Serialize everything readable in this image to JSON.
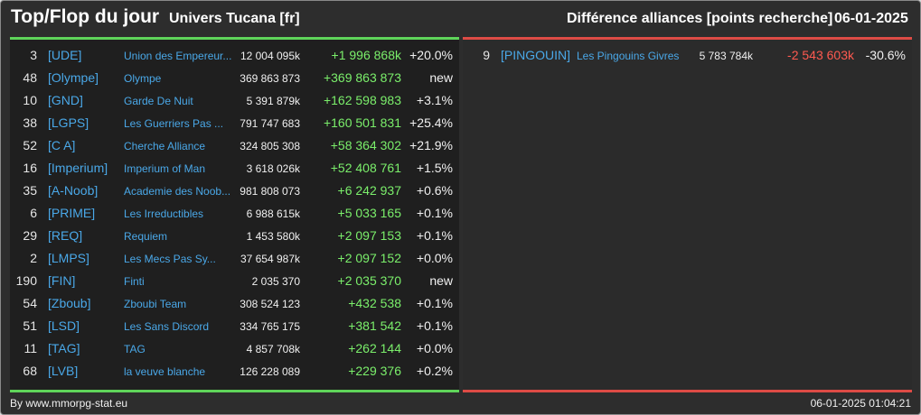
{
  "header": {
    "title": "Top/Flop du jour",
    "universe": "Univers Tucana [fr]",
    "category": "Différence alliances [points recherche]",
    "date": "06-01-2025"
  },
  "colors": {
    "background": "#2d2d2d",
    "gain_accent": "#5fd45a",
    "loss_accent": "#dd4b45",
    "tag_blue": "#4aa8e8",
    "positive_text": "#7bef6b",
    "negative_text": "#ff5a50"
  },
  "top": [
    {
      "rank": "3",
      "tag": "[UDE]",
      "name": "Union des Empereur...",
      "points": "12 004 095k",
      "diff": "+1 996 868k",
      "pct": "+20.0%"
    },
    {
      "rank": "48",
      "tag": "[Olympe]",
      "name": "Olympe",
      "points": "369 863 873",
      "diff": "+369 863 873",
      "pct": "new"
    },
    {
      "rank": "10",
      "tag": "[GND]",
      "name": "Garde De Nuit",
      "points": "5 391 879k",
      "diff": "+162 598 983",
      "pct": "+3.1%"
    },
    {
      "rank": "38",
      "tag": "[LGPS]",
      "name": "Les Guerriers Pas ...",
      "points": "791 747 683",
      "diff": "+160 501 831",
      "pct": "+25.4%"
    },
    {
      "rank": "52",
      "tag": "[C A]",
      "name": "Cherche Alliance",
      "points": "324 805 308",
      "diff": "+58 364 302",
      "pct": "+21.9%"
    },
    {
      "rank": "16",
      "tag": "[Imperium]",
      "name": "Imperium of Man",
      "points": "3 618 026k",
      "diff": "+52 408 761",
      "pct": "+1.5%"
    },
    {
      "rank": "35",
      "tag": "[A-Noob]",
      "name": "Academie des Noob...",
      "points": "981 808 073",
      "diff": "+6 242 937",
      "pct": "+0.6%"
    },
    {
      "rank": "6",
      "tag": "[PRIME]",
      "name": "Les Irreductibles",
      "points": "6 988 615k",
      "diff": "+5 033 165",
      "pct": "+0.1%"
    },
    {
      "rank": "29",
      "tag": "[REQ]",
      "name": "Requiem",
      "points": "1 453 580k",
      "diff": "+2 097 153",
      "pct": "+0.1%"
    },
    {
      "rank": "2",
      "tag": "[LMPS]",
      "name": "Les Mecs Pas Sy...",
      "points": "37 654 987k",
      "diff": "+2 097 152",
      "pct": "+0.0%"
    },
    {
      "rank": "190",
      "tag": "[FIN]",
      "name": "Finti",
      "points": "2 035 370",
      "diff": "+2 035 370",
      "pct": "new"
    },
    {
      "rank": "54",
      "tag": "[Zboub]",
      "name": "Zboubi Team",
      "points": "308 524 123",
      "diff": "+432 538",
      "pct": "+0.1%"
    },
    {
      "rank": "51",
      "tag": "[LSD]",
      "name": "Les Sans Discord",
      "points": "334 765 175",
      "diff": "+381 542",
      "pct": "+0.1%"
    },
    {
      "rank": "11",
      "tag": "[TAG]",
      "name": "TAG",
      "points": "4 857 708k",
      "diff": "+262 144",
      "pct": "+0.0%"
    },
    {
      "rank": "68",
      "tag": "[LVB]",
      "name": "la veuve blanche",
      "points": "126 228 089",
      "diff": "+229 376",
      "pct": "+0.2%"
    }
  ],
  "flop": [
    {
      "rank": "9",
      "tag": "[PINGOUIN]",
      "name": "Les Pingouins Givres",
      "points": "5 783 784k",
      "diff": "-2 543 603k",
      "pct": "-30.6%"
    }
  ],
  "footer": {
    "source": "By www.mmorpg-stat.eu",
    "generated": "06-01-2025 01:04:21"
  }
}
